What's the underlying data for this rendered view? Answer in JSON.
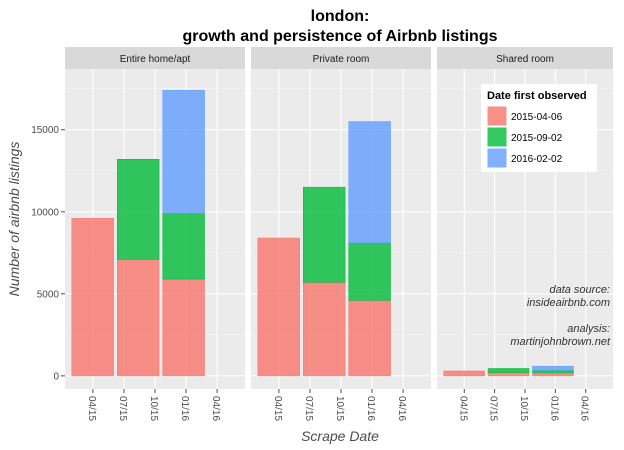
{
  "chart_data": {
    "type": "bar",
    "title_line1": "london:",
    "title_line2": "growth and persistence of Airbnb listings",
    "xlabel": "Scrape Date",
    "ylabel": "Number of airbnb listings",
    "ylim": [
      -800,
      18700
    ],
    "yticks": [
      0,
      5000,
      10000,
      15000
    ],
    "ytick_labels": [
      "0",
      "5000",
      "10000",
      "15000"
    ],
    "x_tick_labels": [
      "04/15",
      "07/15",
      "10/15",
      "01/16",
      "04/16"
    ],
    "categories": [
      "2015-04-06",
      "2015-09-02",
      "2016-02-02"
    ],
    "legend": {
      "title": "Date first observed",
      "position": "top-right",
      "items": [
        "2015-04-06",
        "2015-09-02",
        "2016-02-02"
      ]
    },
    "colors": [
      "#F8766D",
      "#00BA38",
      "#619CFF"
    ],
    "grid": true,
    "stacked": true,
    "facets": [
      {
        "name": "Entire home/apt",
        "stacks": [
          [
            9600
          ],
          [
            7100,
            6100
          ],
          [
            5900,
            4000,
            7500
          ]
        ]
      },
      {
        "name": "Private room",
        "stacks": [
          [
            8400
          ],
          [
            5700,
            5800
          ],
          [
            4600,
            3500,
            7400
          ]
        ]
      },
      {
        "name": "Shared room",
        "stacks": [
          [
            300
          ],
          [
            200,
            250
          ],
          [
            180,
            160,
            250
          ]
        ]
      }
    ],
    "annotations": [
      "data source:",
      "insideairbnb.com",
      "analysis:",
      "martinjohnbrown.net"
    ]
  }
}
